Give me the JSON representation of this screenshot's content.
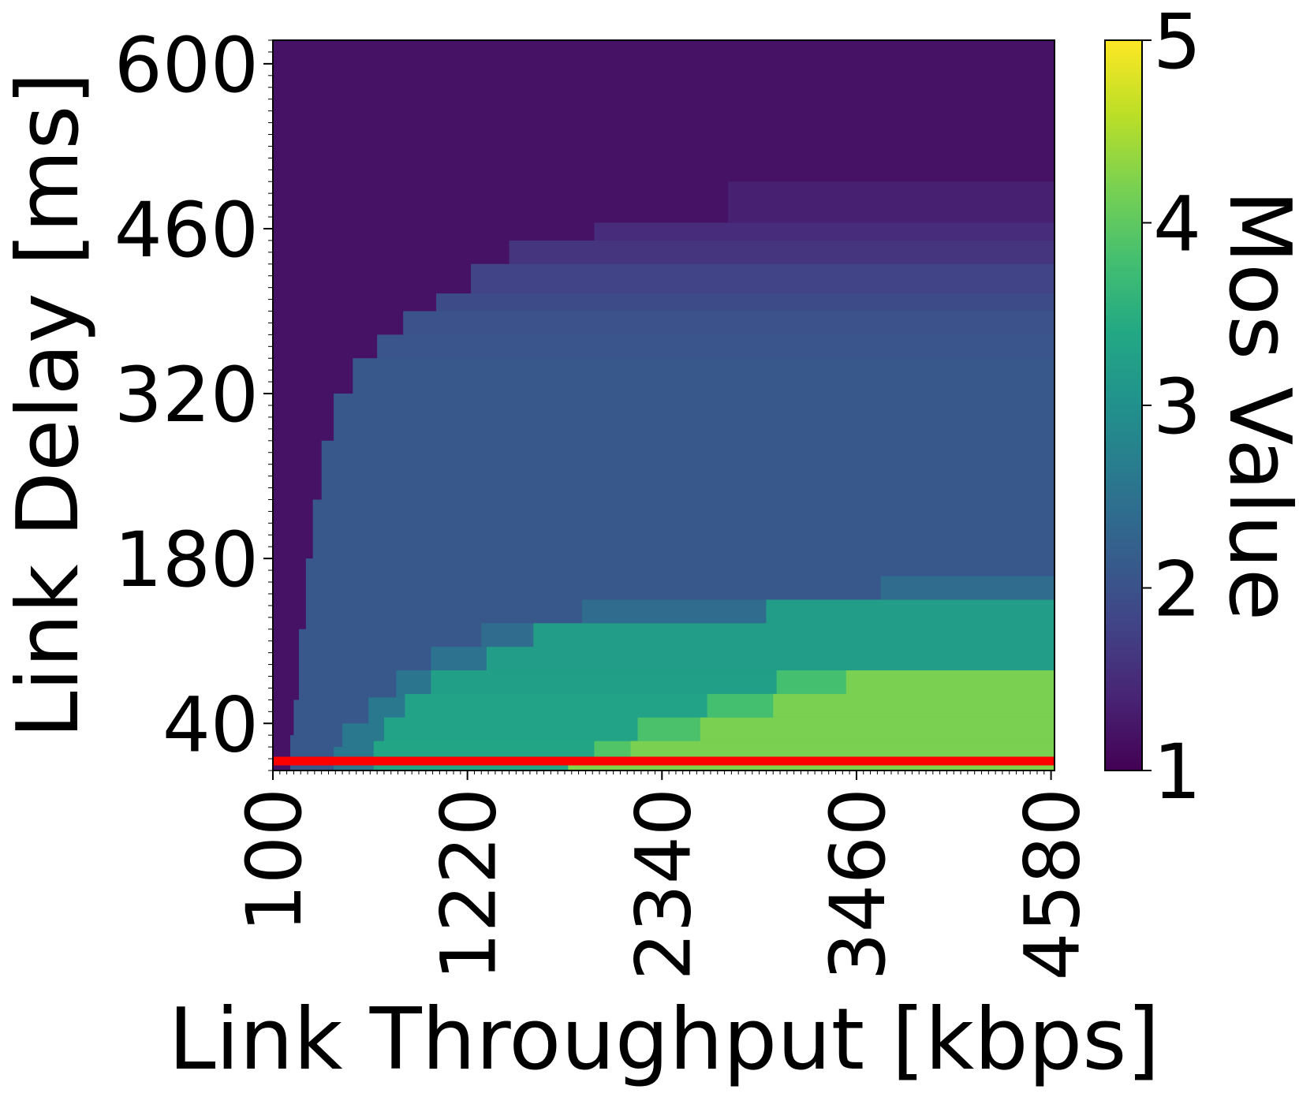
{
  "chart_data": {
    "type": "heatmap",
    "title": "",
    "xlabel": "Link Throughput [kbps]",
    "ylabel": "Link Delay [ms]",
    "colorbar_label": "Mos Value",
    "colormap": "viridis",
    "clim": [
      1,
      5
    ],
    "xlim": [
      100,
      4600
    ],
    "ylim": [
      0,
      620
    ],
    "x_ticks": [
      100,
      1220,
      2340,
      3460,
      4580
    ],
    "x_tick_labels": [
      "100",
      "1220",
      "2340",
      "3460",
      "4580"
    ],
    "y_ticks": [
      40,
      180,
      320,
      460,
      600
    ],
    "y_tick_labels": [
      "40",
      "180",
      "320",
      "460",
      "600"
    ],
    "colorbar_ticks": [
      1,
      2,
      3,
      4,
      5
    ],
    "colorbar_tick_labels": [
      "1",
      "2",
      "3",
      "4",
      "5"
    ],
    "threshold_line": {
      "delay_ms": 8,
      "color": "#ff0000"
    },
    "regions": [
      {
        "x": [
          100,
          4600
        ],
        "y": [
          0,
          620
        ],
        "mos": 1.2
      },
      {
        "x": [
          2720,
          4600
        ],
        "y": [
          445,
          500
        ],
        "mos": 1.35
      },
      {
        "x": [
          1950,
          4600
        ],
        "y": [
          425,
          465
        ],
        "mos": 1.5
      },
      {
        "x": [
          1460,
          4600
        ],
        "y": [
          405,
          450
        ],
        "mos": 1.6
      },
      {
        "x": [
          1240,
          4600
        ],
        "y": [
          380,
          430
        ],
        "mos": 1.8
      },
      {
        "x": [
          1040,
          4600
        ],
        "y": [
          355,
          405
        ],
        "mos": 1.9
      },
      {
        "x": [
          850,
          4600
        ],
        "y": [
          330,
          390
        ],
        "mos": 2.0
      },
      {
        "x": [
          700,
          4600
        ],
        "y": [
          300,
          370
        ],
        "mos": 2.05
      },
      {
        "x": [
          560,
          4600
        ],
        "y": [
          260,
          350
        ],
        "mos": 2.1
      },
      {
        "x": [
          450,
          4600
        ],
        "y": [
          220,
          320
        ],
        "mos": 2.1
      },
      {
        "x": [
          380,
          4600
        ],
        "y": [
          170,
          280
        ],
        "mos": 2.1
      },
      {
        "x": [
          330,
          4600
        ],
        "y": [
          130,
          230
        ],
        "mos": 2.1
      },
      {
        "x": [
          290,
          4600
        ],
        "y": [
          80,
          180
        ],
        "mos": 2.1
      },
      {
        "x": [
          250,
          4600
        ],
        "y": [
          30,
          120
        ],
        "mos": 2.1
      },
      {
        "x": [
          220,
          4600
        ],
        "y": [
          0,
          60
        ],
        "mos": 2.1
      },
      {
        "x": [
          200,
          4600
        ],
        "y": [
          0,
          30
        ],
        "mos": 2.1
      },
      {
        "x": [
          3600,
          4600
        ],
        "y": [
          145,
          165
        ],
        "mos": 2.4
      },
      {
        "x": [
          1880,
          4600
        ],
        "y": [
          125,
          145
        ],
        "mos": 2.4
      },
      {
        "x": [
          1300,
          4600
        ],
        "y": [
          105,
          125
        ],
        "mos": 2.4
      },
      {
        "x": [
          1010,
          4600
        ],
        "y": [
          85,
          105
        ],
        "mos": 2.5
      },
      {
        "x": [
          810,
          4600
        ],
        "y": [
          62,
          85
        ],
        "mos": 2.55
      },
      {
        "x": [
          650,
          4600
        ],
        "y": [
          40,
          62
        ],
        "mos": 2.6
      },
      {
        "x": [
          500,
          4600
        ],
        "y": [
          20,
          40
        ],
        "mos": 2.6
      },
      {
        "x": [
          450,
          4600
        ],
        "y": [
          0,
          20
        ],
        "mos": 2.6
      },
      {
        "x": [
          2940,
          4600
        ],
        "y": [
          105,
          145
        ],
        "mos": 3.2
      },
      {
        "x": [
          1600,
          4600
        ],
        "y": [
          85,
          125
        ],
        "mos": 3.2
      },
      {
        "x": [
          1330,
          4600
        ],
        "y": [
          65,
          105
        ],
        "mos": 3.2
      },
      {
        "x": [
          1010,
          4600
        ],
        "y": [
          45,
          85
        ],
        "mos": 3.25
      },
      {
        "x": [
          860,
          4600
        ],
        "y": [
          25,
          65
        ],
        "mos": 3.3
      },
      {
        "x": [
          740,
          4600
        ],
        "y": [
          5,
          45
        ],
        "mos": 3.3
      },
      {
        "x": [
          680,
          4600
        ],
        "y": [
          0,
          25
        ],
        "mos": 3.35
      },
      {
        "x": [
          3000,
          4600
        ],
        "y": [
          65,
          85
        ],
        "mos": 3.8
      },
      {
        "x": [
          2600,
          4600
        ],
        "y": [
          45,
          65
        ],
        "mos": 3.8
      },
      {
        "x": [
          2200,
          4600
        ],
        "y": [
          25,
          45
        ],
        "mos": 3.85
      },
      {
        "x": [
          1950,
          4600
        ],
        "y": [
          5,
          25
        ],
        "mos": 3.9
      },
      {
        "x": [
          3400,
          4600
        ],
        "y": [
          65,
          85
        ],
        "mos": 4.2
      },
      {
        "x": [
          2980,
          4600
        ],
        "y": [
          45,
          65
        ],
        "mos": 4.2
      },
      {
        "x": [
          2560,
          4600
        ],
        "y": [
          25,
          45
        ],
        "mos": 4.2
      },
      {
        "x": [
          2160,
          4600
        ],
        "y": [
          5,
          25
        ],
        "mos": 4.2
      },
      {
        "x": [
          1800,
          4600
        ],
        "y": [
          0,
          8
        ],
        "mos": 4.25
      }
    ]
  }
}
